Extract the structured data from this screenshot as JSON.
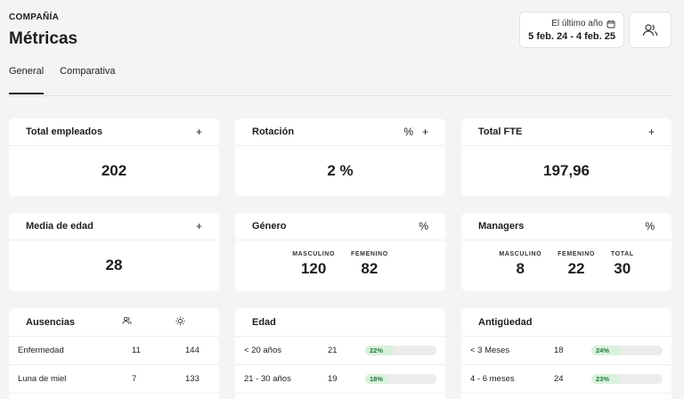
{
  "header": {
    "kicker": "COMPAÑÍA",
    "title": "Métricas"
  },
  "date_filter": {
    "label": "El último año",
    "range": "5 feb. 24 - 4 feb. 25",
    "icon": "calendar-icon"
  },
  "users_button": {
    "icon": "users-icon"
  },
  "tabs": [
    {
      "label": "General",
      "active": true
    },
    {
      "label": "Comparativa",
      "active": false
    }
  ],
  "cards": {
    "total_empleados": {
      "title": "Total empleados",
      "value": "202"
    },
    "rotacion": {
      "title": "Rotación",
      "value": "2 %"
    },
    "total_fte": {
      "title": "Total FTE",
      "value": "197,96"
    },
    "media_edad": {
      "title": "Media de edad",
      "value": "28"
    },
    "genero": {
      "title": "Género",
      "labels": [
        "MASCULINO",
        "FEMENINO"
      ],
      "values": [
        "120",
        "82"
      ]
    },
    "managers": {
      "title": "Managers",
      "labels": [
        "MASCULINO",
        "FEMENINO",
        "TOTAL"
      ],
      "values": [
        "8",
        "22",
        "30"
      ]
    }
  },
  "actions": {
    "plus": "+",
    "percent": "%"
  },
  "ausencias": {
    "title": "Ausencias",
    "rows": [
      {
        "label": "Enfermedad",
        "a": "11",
        "b": "144"
      },
      {
        "label": "Luna de miel",
        "a": "7",
        "b": "133"
      }
    ]
  },
  "edad": {
    "title": "Edad",
    "rows": [
      {
        "label": "< 20 años",
        "count": "21",
        "pct": "22%",
        "fraction": 0.22
      },
      {
        "label": "21 - 30 años",
        "count": "19",
        "pct": "18%",
        "fraction": 0.18
      }
    ]
  },
  "antiguedad": {
    "title": "Antigüedad",
    "rows": [
      {
        "label": "< 3 Meses",
        "count": "18",
        "pct": "24%",
        "fraction": 0.24
      },
      {
        "label": "4 - 6 meses",
        "count": "24",
        "pct": "23%",
        "fraction": 0.23
      }
    ]
  }
}
